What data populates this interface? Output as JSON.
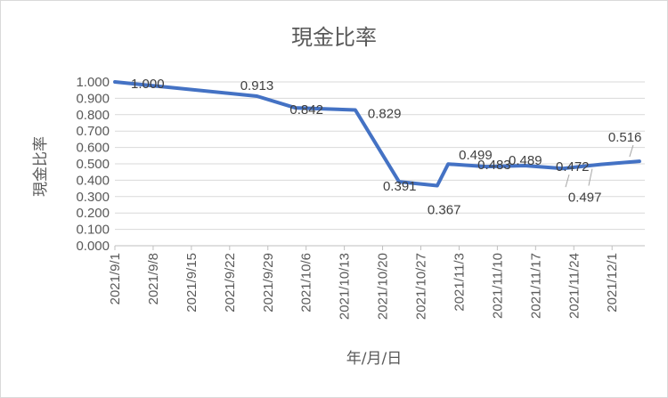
{
  "chart_data": {
    "type": "line",
    "title": "現金比率",
    "xlabel": "年/月/日",
    "ylabel": "現金比率",
    "ylim": [
      0,
      1
    ],
    "y_ticks": [
      "0.000",
      "0.100",
      "0.200",
      "0.300",
      "0.400",
      "0.500",
      "0.600",
      "0.700",
      "0.800",
      "0.900",
      "1.000"
    ],
    "x_tick_labels": [
      "2021/9/1",
      "2021/9/8",
      "2021/9/15",
      "2021/9/22",
      "2021/9/29",
      "2021/10/6",
      "2021/10/13",
      "2021/10/20",
      "2021/10/27",
      "2021/11/3",
      "2021/11/10",
      "2021/11/17",
      "2021/11/24",
      "2021/12/1"
    ],
    "x_range": [
      "2021-09-01",
      "2021-12-07"
    ],
    "grid": true,
    "legend": "none",
    "series_color": "#4472c4",
    "series": [
      {
        "points": [
          {
            "x": "2021-09-01",
            "y": 1.0,
            "label": "1.000"
          },
          {
            "x": "2021-09-27",
            "y": 0.913,
            "label": "0.913"
          },
          {
            "x": "2021-10-04",
            "y": 0.842,
            "label": "0.842"
          },
          {
            "x": "2021-10-15",
            "y": 0.829,
            "label": "0.829"
          },
          {
            "x": "2021-10-23",
            "y": 0.391,
            "label": "0.391"
          },
          {
            "x": "2021-10-30",
            "y": 0.367,
            "label": "0.367"
          },
          {
            "x": "2021-11-01",
            "y": 0.499,
            "label": "0.499"
          },
          {
            "x": "2021-11-08",
            "y": 0.483,
            "label": "0.483"
          },
          {
            "x": "2021-11-15",
            "y": 0.489,
            "label": "0.489"
          },
          {
            "x": "2021-11-22",
            "y": 0.472,
            "label": "0.472"
          },
          {
            "x": "2021-11-29",
            "y": 0.497,
            "label": "0.497"
          },
          {
            "x": "2021-12-06",
            "y": 0.516,
            "label": "0.516"
          }
        ]
      }
    ]
  }
}
